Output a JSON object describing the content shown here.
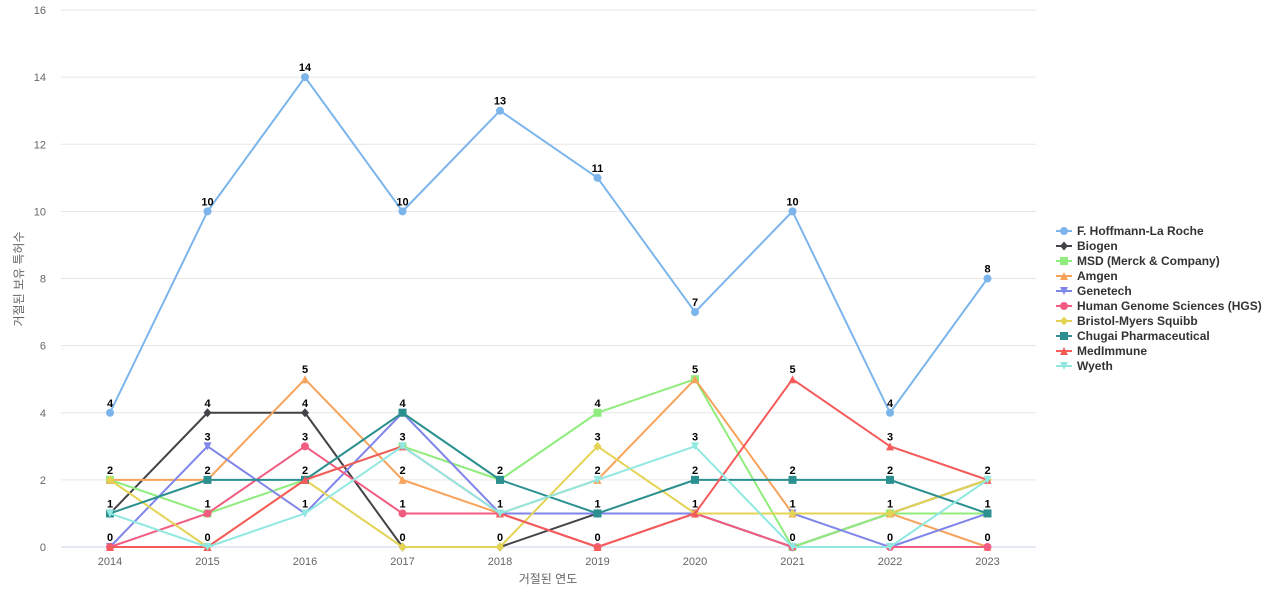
{
  "chart_data": {
    "type": "line",
    "title": "",
    "xlabel": "거절된 연도",
    "ylabel": "거절된 보유 특허수",
    "x": [
      "2014",
      "2015",
      "2016",
      "2017",
      "2018",
      "2019",
      "2020",
      "2021",
      "2022",
      "2023"
    ],
    "ylim": [
      0,
      16
    ],
    "yticks": [
      0,
      2,
      4,
      6,
      8,
      10,
      12,
      14,
      16
    ],
    "grid": true,
    "legend_position": "right",
    "series": [
      {
        "name": "F. Hoffmann-La Roche",
        "color": "#7cb5ec",
        "marker": "circle",
        "values": [
          4,
          10,
          14,
          10,
          13,
          11,
          7,
          10,
          4,
          8
        ]
      },
      {
        "name": "Biogen",
        "color": "#434348",
        "marker": "diamond",
        "values": [
          1,
          4,
          4,
          0,
          0,
          1,
          1,
          0,
          1,
          2
        ]
      },
      {
        "name": "MSD (Merck & Company)",
        "color": "#90ed7d",
        "marker": "square",
        "values": [
          2,
          1,
          2,
          3,
          2,
          4,
          5,
          0,
          1,
          1
        ]
      },
      {
        "name": "Amgen",
        "color": "#f7a35c",
        "marker": "triangle",
        "values": [
          2,
          2,
          5,
          2,
          1,
          2,
          5,
          1,
          1,
          0
        ]
      },
      {
        "name": "Genetech",
        "color": "#8085e9",
        "marker": "triangle-down",
        "values": [
          0,
          3,
          1,
          4,
          1,
          1,
          1,
          1,
          0,
          1
        ]
      },
      {
        "name": "Human Genome Sciences (HGS)",
        "color": "#f15c80",
        "marker": "circle",
        "values": [
          0,
          1,
          3,
          1,
          1,
          0,
          1,
          0,
          0,
          0
        ]
      },
      {
        "name": "Bristol-Myers Squibb",
        "color": "#e4d354",
        "marker": "diamond",
        "values": [
          2,
          0,
          2,
          0,
          0,
          3,
          1,
          1,
          1,
          2
        ]
      },
      {
        "name": "Chugai Pharmaceutical",
        "color": "#2b908f",
        "marker": "square",
        "values": [
          1,
          2,
          2,
          4,
          2,
          1,
          2,
          2,
          2,
          1
        ]
      },
      {
        "name": "MedImmune",
        "color": "#f45b5b",
        "marker": "triangle",
        "values": [
          0,
          0,
          2,
          3,
          1,
          0,
          1,
          5,
          3,
          2
        ]
      },
      {
        "name": "Wyeth",
        "color": "#91e8e1",
        "marker": "triangle-down",
        "values": [
          1,
          0,
          1,
          3,
          1,
          2,
          3,
          0,
          0,
          2
        ]
      }
    ],
    "data_labels": [
      {
        "x": "2014",
        "value": 4,
        "text": "4"
      },
      {
        "x": "2014",
        "value": 2,
        "text": "2"
      },
      {
        "x": "2014",
        "value": 1,
        "text": "1"
      },
      {
        "x": "2014",
        "value": 0,
        "text": "0"
      },
      {
        "x": "2015",
        "value": 10,
        "text": "10"
      },
      {
        "x": "2015",
        "value": 4,
        "text": "4"
      },
      {
        "x": "2015",
        "value": 3,
        "text": "3"
      },
      {
        "x": "2015",
        "value": 2,
        "text": "2"
      },
      {
        "x": "2015",
        "value": 1,
        "text": "1"
      },
      {
        "x": "2015",
        "value": 0,
        "text": "0"
      },
      {
        "x": "2016",
        "value": 14,
        "text": "14"
      },
      {
        "x": "2016",
        "value": 5,
        "text": "5"
      },
      {
        "x": "2016",
        "value": 4,
        "text": "4"
      },
      {
        "x": "2016",
        "value": 3,
        "text": "3"
      },
      {
        "x": "2016",
        "value": 2,
        "text": "2"
      },
      {
        "x": "2016",
        "value": 1,
        "text": "1"
      },
      {
        "x": "2017",
        "value": 10,
        "text": "10"
      },
      {
        "x": "2017",
        "value": 4,
        "text": "4"
      },
      {
        "x": "2017",
        "value": 3,
        "text": "3"
      },
      {
        "x": "2017",
        "value": 2,
        "text": "2"
      },
      {
        "x": "2017",
        "value": 1,
        "text": "1"
      },
      {
        "x": "2017",
        "value": 0,
        "text": "0"
      },
      {
        "x": "2018",
        "value": 13,
        "text": "13"
      },
      {
        "x": "2018",
        "value": 2,
        "text": "2"
      },
      {
        "x": "2018",
        "value": 1,
        "text": "1"
      },
      {
        "x": "2018",
        "value": 0,
        "text": "0"
      },
      {
        "x": "2019",
        "value": 11,
        "text": "11"
      },
      {
        "x": "2019",
        "value": 4,
        "text": "4"
      },
      {
        "x": "2019",
        "value": 3,
        "text": "3"
      },
      {
        "x": "2019",
        "value": 2,
        "text": "2"
      },
      {
        "x": "2019",
        "value": 1,
        "text": "1"
      },
      {
        "x": "2019",
        "value": 0,
        "text": "0"
      },
      {
        "x": "2020",
        "value": 7,
        "text": "7"
      },
      {
        "x": "2020",
        "value": 5,
        "text": "5"
      },
      {
        "x": "2020",
        "value": 3,
        "text": "3"
      },
      {
        "x": "2020",
        "value": 2,
        "text": "2"
      },
      {
        "x": "2020",
        "value": 1,
        "text": "1"
      },
      {
        "x": "2021",
        "value": 10,
        "text": "10"
      },
      {
        "x": "2021",
        "value": 5,
        "text": "5"
      },
      {
        "x": "2021",
        "value": 2,
        "text": "2"
      },
      {
        "x": "2021",
        "value": 1,
        "text": "1"
      },
      {
        "x": "2021",
        "value": 0,
        "text": "0"
      },
      {
        "x": "2022",
        "value": 4,
        "text": "4"
      },
      {
        "x": "2022",
        "value": 3,
        "text": "3"
      },
      {
        "x": "2022",
        "value": 2,
        "text": "2"
      },
      {
        "x": "2022",
        "value": 1,
        "text": "1"
      },
      {
        "x": "2022",
        "value": 0,
        "text": "0"
      },
      {
        "x": "2023",
        "value": 8,
        "text": "8"
      },
      {
        "x": "2023",
        "value": 2,
        "text": "2"
      },
      {
        "x": "2023",
        "value": 1,
        "text": "1"
      },
      {
        "x": "2023",
        "value": 0,
        "text": "0"
      }
    ]
  }
}
